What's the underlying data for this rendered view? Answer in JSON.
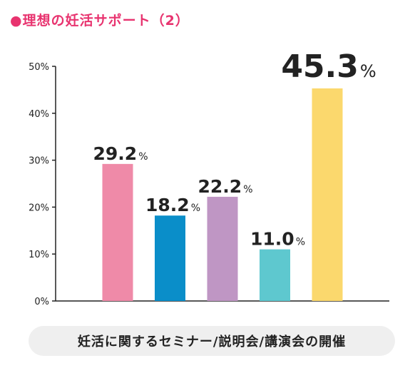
{
  "title": "●理想の妊活サポート（2）",
  "caption": "妊活に関するセミナー/説明会/講演会の開催",
  "chart_data": {
    "type": "bar",
    "title": "●理想の妊活サポート（2）",
    "xlabel": "妊活に関するセミナー/説明会/講演会の開催",
    "ylabel": "",
    "ylim": [
      0,
      50
    ],
    "yticks": [
      0,
      10,
      20,
      30,
      40,
      50
    ],
    "ytick_labels": [
      "0%",
      "10%",
      "20%",
      "30%",
      "40%",
      "50%"
    ],
    "grid": false,
    "unit": "%",
    "series": [
      {
        "label": "29.2",
        "value": 29.2,
        "color": "#ef8aa8"
      },
      {
        "label": "18.2",
        "value": 18.2,
        "color": "#0a8ec9"
      },
      {
        "label": "22.2",
        "value": 22.2,
        "color": "#bf96c4"
      },
      {
        "label": "11.0",
        "value": 11.0,
        "color": "#5ec8cf"
      },
      {
        "label": "45.3",
        "value": 45.3,
        "color": "#fbd86d"
      }
    ]
  }
}
